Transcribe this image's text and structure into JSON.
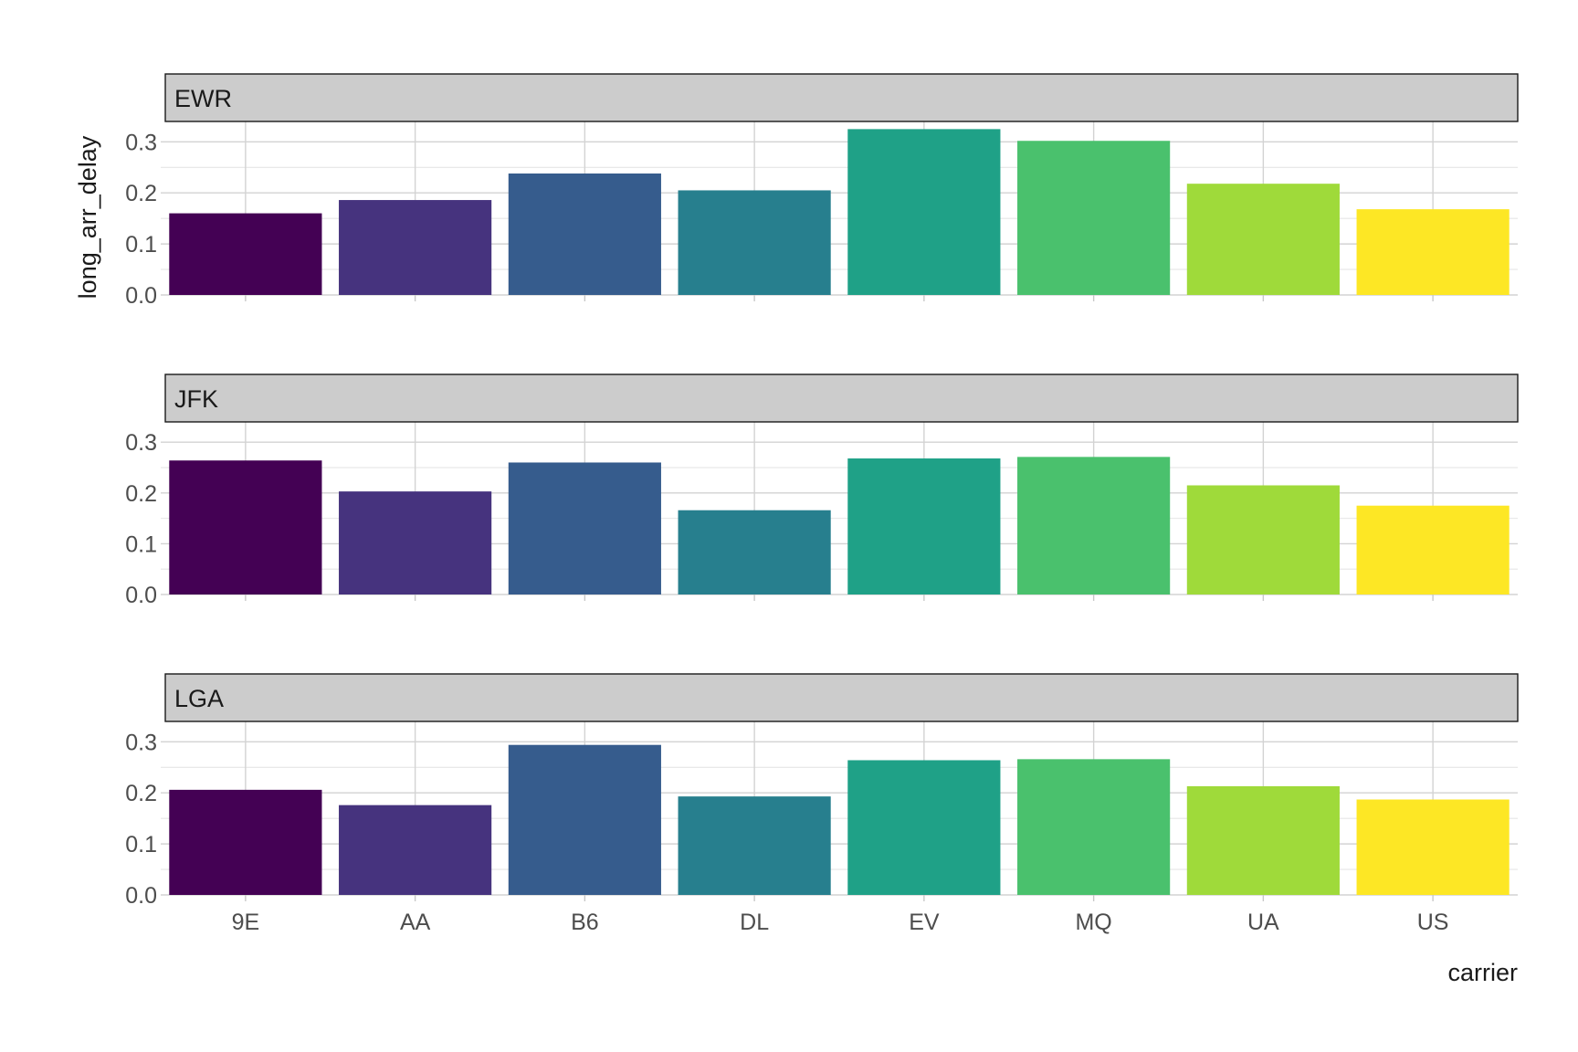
{
  "chart_data": {
    "type": "bar",
    "facet_by": "origin",
    "categories": [
      "9E",
      "AA",
      "B6",
      "DL",
      "EV",
      "MQ",
      "UA",
      "US"
    ],
    "colors": [
      "#440154",
      "#46337E",
      "#365C8D",
      "#277F8E",
      "#1FA187",
      "#4AC16D",
      "#9FDA3A",
      "#FDE725"
    ],
    "panels": [
      {
        "name": "EWR",
        "values": [
          0.16,
          0.186,
          0.238,
          0.205,
          0.325,
          0.302,
          0.218,
          0.168
        ]
      },
      {
        "name": "JFK",
        "values": [
          0.264,
          0.203,
          0.26,
          0.166,
          0.268,
          0.271,
          0.215,
          0.175
        ]
      },
      {
        "name": "LGA",
        "values": [
          0.206,
          0.176,
          0.294,
          0.193,
          0.264,
          0.266,
          0.213,
          0.187
        ]
      }
    ],
    "ylim": [
      0,
      0.34
    ],
    "yticks": [
      0.0,
      0.1,
      0.2,
      0.3
    ],
    "ytick_labels": [
      "0.0",
      "0.1",
      "0.2",
      "0.3"
    ],
    "xlabel": "carrier",
    "ylabel": "long_arr_delay",
    "grid": true,
    "legend": "none"
  }
}
